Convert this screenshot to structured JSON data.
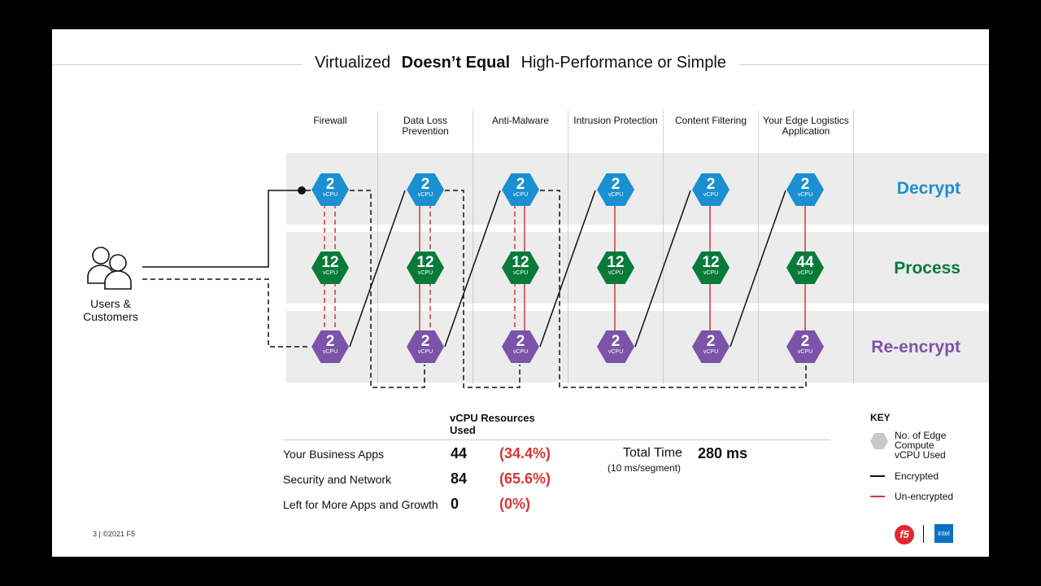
{
  "title": {
    "prefix": "Virtualized ",
    "bold": "Doesn’t Equal",
    "suffix": " High-Performance or Simple"
  },
  "users": {
    "label": "Users & Customers"
  },
  "columns": [
    {
      "name": "Firewall",
      "decrypt": "2",
      "process": "12",
      "reencrypt": "2"
    },
    {
      "name": "Data Loss Prevention",
      "decrypt": "2",
      "process": "12",
      "reencrypt": "2"
    },
    {
      "name": "Anti-Malware",
      "decrypt": "2",
      "process": "12",
      "reencrypt": "2"
    },
    {
      "name": "Intrusion Protection",
      "decrypt": "2",
      "process": "12",
      "reencrypt": "2"
    },
    {
      "name": "Content Filtering",
      "decrypt": "2",
      "process": "12",
      "reencrypt": "2"
    },
    {
      "name": "Your Edge Logistics Application",
      "decrypt": "2",
      "process": "44",
      "reencrypt": "2"
    }
  ],
  "unit_label": "vCPU",
  "rows": {
    "decrypt": "Decrypt",
    "process": "Process",
    "reencrypt": "Re-encrypt"
  },
  "colors": {
    "decrypt": "#1a8fd1",
    "process": "#0a7a3a",
    "reencrypt": "#7b53a8",
    "unencrypted": "#d53636",
    "encrypted": "#111111"
  },
  "resources": {
    "header": "vCPU Resources Used",
    "rows": [
      {
        "label": "Your Business Apps",
        "value": "44",
        "pct": "(34.4%)"
      },
      {
        "label": "Security and Network",
        "value": "84",
        "pct": "(65.6%)"
      },
      {
        "label": "Left for More Apps and Growth",
        "value": "0",
        "pct": "(0%)"
      }
    ],
    "total_label": "Total Time",
    "total_value": "280 ms",
    "total_note": "(10 ms/segment)"
  },
  "key": {
    "title": "KEY",
    "hex_label": "No. of Edge Compute vCPU Used",
    "encrypted": "Encrypted",
    "unencrypted": "Un-encrypted"
  },
  "footer": "3 | ©2021 F5",
  "logos": {
    "f5": "f5",
    "intel": "intel"
  }
}
